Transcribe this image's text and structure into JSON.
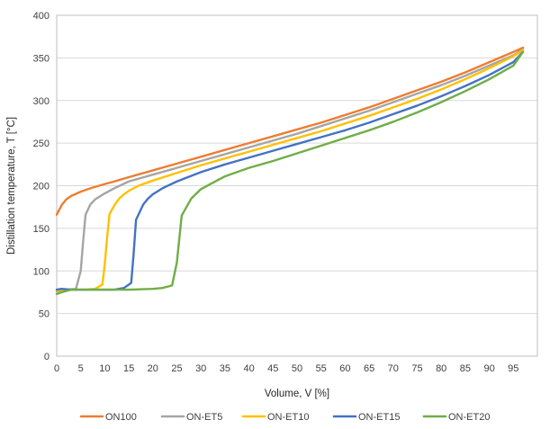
{
  "chart_data": {
    "type": "line",
    "title": "",
    "xlabel": "Volume, V [%]",
    "ylabel": "Distillation temperature, T [°C]",
    "xlim": [
      0,
      100
    ],
    "ylim": [
      0,
      400
    ],
    "xticks": [
      0,
      5,
      10,
      15,
      20,
      25,
      30,
      35,
      40,
      45,
      50,
      55,
      60,
      65,
      70,
      75,
      80,
      85,
      90,
      95
    ],
    "yticks": [
      0,
      50,
      100,
      150,
      200,
      250,
      300,
      350,
      400
    ],
    "grid": "horizontal",
    "legend_position": "bottom",
    "series": [
      {
        "name": "ON100",
        "color": "#ED7D31",
        "x": [
          0,
          1,
          2,
          3,
          5,
          7,
          10,
          12,
          15,
          20,
          25,
          30,
          35,
          40,
          45,
          50,
          55,
          60,
          65,
          70,
          75,
          80,
          85,
          90,
          95,
          97
        ],
        "y": [
          166,
          177,
          184,
          188,
          193,
          197,
          202,
          205,
          210,
          218,
          226,
          234,
          242,
          250,
          258,
          266,
          274,
          283,
          292,
          302,
          312,
          322,
          333,
          345,
          357,
          362
        ]
      },
      {
        "name": "ON-ET5",
        "color": "#A5A5A5",
        "x": [
          0,
          2,
          4,
          5,
          5.5,
          6,
          6.5,
          7,
          8,
          10,
          12,
          15,
          20,
          25,
          30,
          35,
          40,
          45,
          50,
          55,
          60,
          65,
          70,
          75,
          80,
          85,
          90,
          95,
          97
        ],
        "y": [
          76,
          78,
          79,
          100,
          135,
          166,
          172,
          178,
          184,
          191,
          197,
          205,
          213,
          221,
          229,
          237,
          245,
          253,
          261,
          270,
          279,
          288,
          298,
          308,
          318,
          329,
          341,
          353,
          360
        ]
      },
      {
        "name": "ON-ET10",
        "color": "#FFC000",
        "x": [
          0,
          3,
          6,
          8,
          9.5,
          10,
          10.5,
          11,
          12,
          13,
          14,
          15,
          17,
          20,
          25,
          30,
          35,
          40,
          45,
          50,
          55,
          60,
          65,
          70,
          75,
          80,
          85,
          90,
          95,
          97
        ],
        "y": [
          77,
          78,
          78,
          79,
          84,
          108,
          140,
          167,
          177,
          185,
          190,
          194,
          200,
          206,
          215,
          224,
          232,
          240,
          248,
          256,
          264,
          273,
          282,
          292,
          302,
          313,
          325,
          338,
          352,
          359
        ]
      },
      {
        "name": "ON-ET15",
        "color": "#4472C4",
        "x": [
          0,
          1,
          3,
          5,
          8,
          10,
          12,
          14,
          15.5,
          16,
          16.5,
          17,
          18,
          19,
          20,
          22,
          25,
          30,
          35,
          40,
          45,
          50,
          55,
          60,
          65,
          70,
          75,
          80,
          85,
          90,
          95,
          97
        ],
        "y": [
          78,
          79,
          78,
          78,
          78,
          78,
          78,
          80,
          86,
          120,
          160,
          166,
          178,
          185,
          190,
          197,
          205,
          216,
          225,
          233,
          241,
          249,
          257,
          265,
          274,
          284,
          294,
          305,
          317,
          330,
          345,
          357
        ]
      },
      {
        "name": "ON-ET20",
        "color": "#70AD47",
        "x": [
          0,
          1,
          3,
          5,
          10,
          15,
          20,
          22,
          24,
          25,
          26,
          27,
          28,
          30,
          32,
          35,
          40,
          45,
          50,
          55,
          60,
          65,
          70,
          75,
          80,
          85,
          90,
          95,
          97
        ],
        "y": [
          73,
          75,
          78,
          78,
          78,
          78,
          79,
          80,
          83,
          110,
          165,
          175,
          185,
          196,
          202,
          211,
          221,
          229,
          238,
          247,
          256,
          265,
          275,
          286,
          298,
          311,
          325,
          341,
          357
        ]
      }
    ]
  }
}
